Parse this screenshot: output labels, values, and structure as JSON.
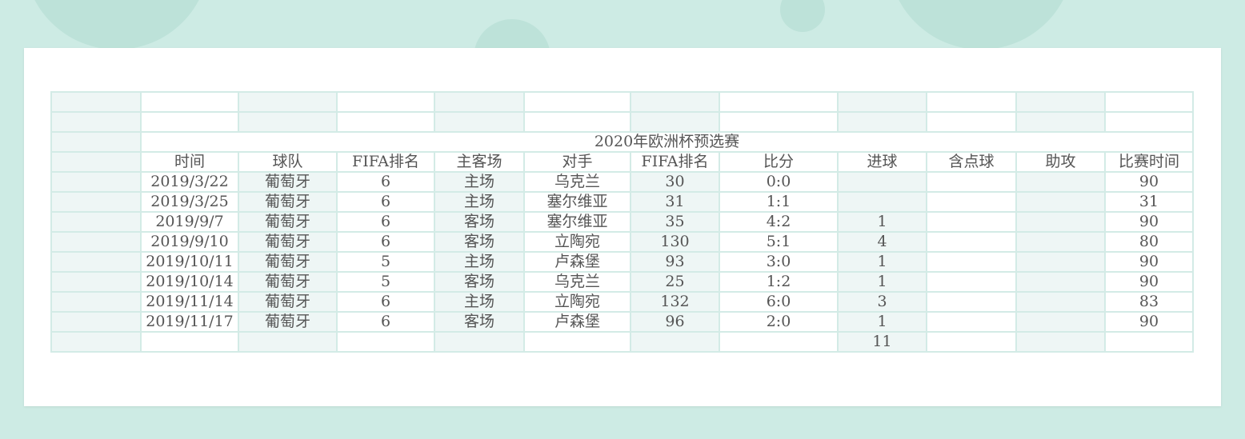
{
  "title": "2020年欧洲杯预选赛",
  "headers": [
    "时间",
    "球队",
    "FIFA排名",
    "主客场",
    "对手",
    "FIFA排名",
    "比分",
    "进球",
    "含点球",
    "助攻",
    "比赛时间"
  ],
  "rows": [
    [
      "2019/3/22",
      "葡萄牙",
      "6",
      "主场",
      "乌克兰",
      "30",
      "0:0",
      "",
      "",
      "",
      "90"
    ],
    [
      "2019/3/25",
      "葡萄牙",
      "6",
      "主场",
      "塞尔维亚",
      "31",
      "1:1",
      "",
      "",
      "",
      "31"
    ],
    [
      "2019/9/7",
      "葡萄牙",
      "6",
      "客场",
      "塞尔维亚",
      "35",
      "4:2",
      "1",
      "",
      "",
      "90"
    ],
    [
      "2019/9/10",
      "葡萄牙",
      "6",
      "客场",
      "立陶宛",
      "130",
      "5:1",
      "4",
      "",
      "",
      "80"
    ],
    [
      "2019/10/11",
      "葡萄牙",
      "5",
      "主场",
      "卢森堡",
      "93",
      "3:0",
      "1",
      "",
      "",
      "90"
    ],
    [
      "2019/10/14",
      "葡萄牙",
      "5",
      "客场",
      "乌克兰",
      "25",
      "1:2",
      "1",
      "",
      "",
      "90"
    ],
    [
      "2019/11/14",
      "葡萄牙",
      "6",
      "主场",
      "立陶宛",
      "132",
      "6:0",
      "3",
      "",
      "",
      "83"
    ],
    [
      "2019/11/17",
      "葡萄牙",
      "6",
      "客场",
      "卢森堡",
      "96",
      "2:0",
      "1",
      "",
      "",
      "90"
    ]
  ],
  "total_goals": "11"
}
